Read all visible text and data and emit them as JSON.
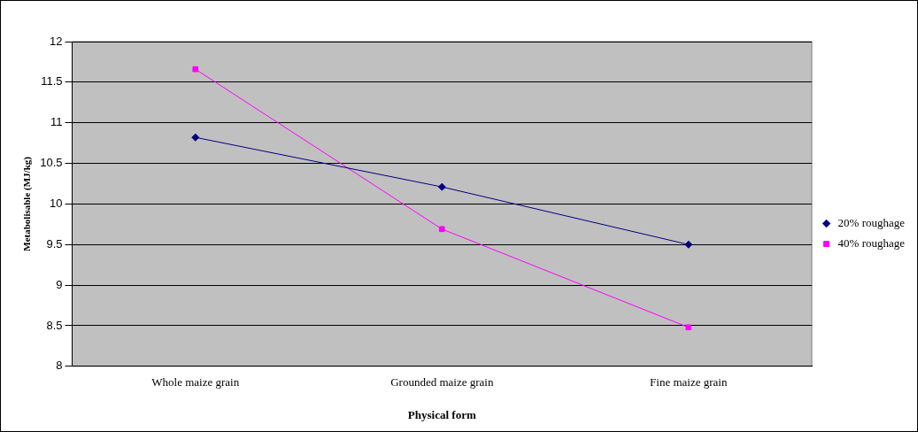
{
  "chart_data": {
    "type": "line",
    "xlabel": "Physical form",
    "ylabel": "Metabolisable (MJ/kg)",
    "categories": [
      "Whole maize grain",
      "Grounded maize grain",
      "Fine maize grain"
    ],
    "series": [
      {
        "name": "20% roughage",
        "color": "#000080",
        "marker": "diamond",
        "values": [
          10.82,
          10.21,
          9.5
        ]
      },
      {
        "name": "40% roughage",
        "color": "#ff00ff",
        "marker": "square",
        "values": [
          11.66,
          9.69,
          8.48
        ]
      }
    ],
    "ylim": [
      8,
      12
    ],
    "yticks": [
      8,
      8.5,
      9,
      9.5,
      10,
      10.5,
      11,
      11.5,
      12
    ],
    "grid": "y",
    "legend": "right",
    "line_style": "solid"
  }
}
